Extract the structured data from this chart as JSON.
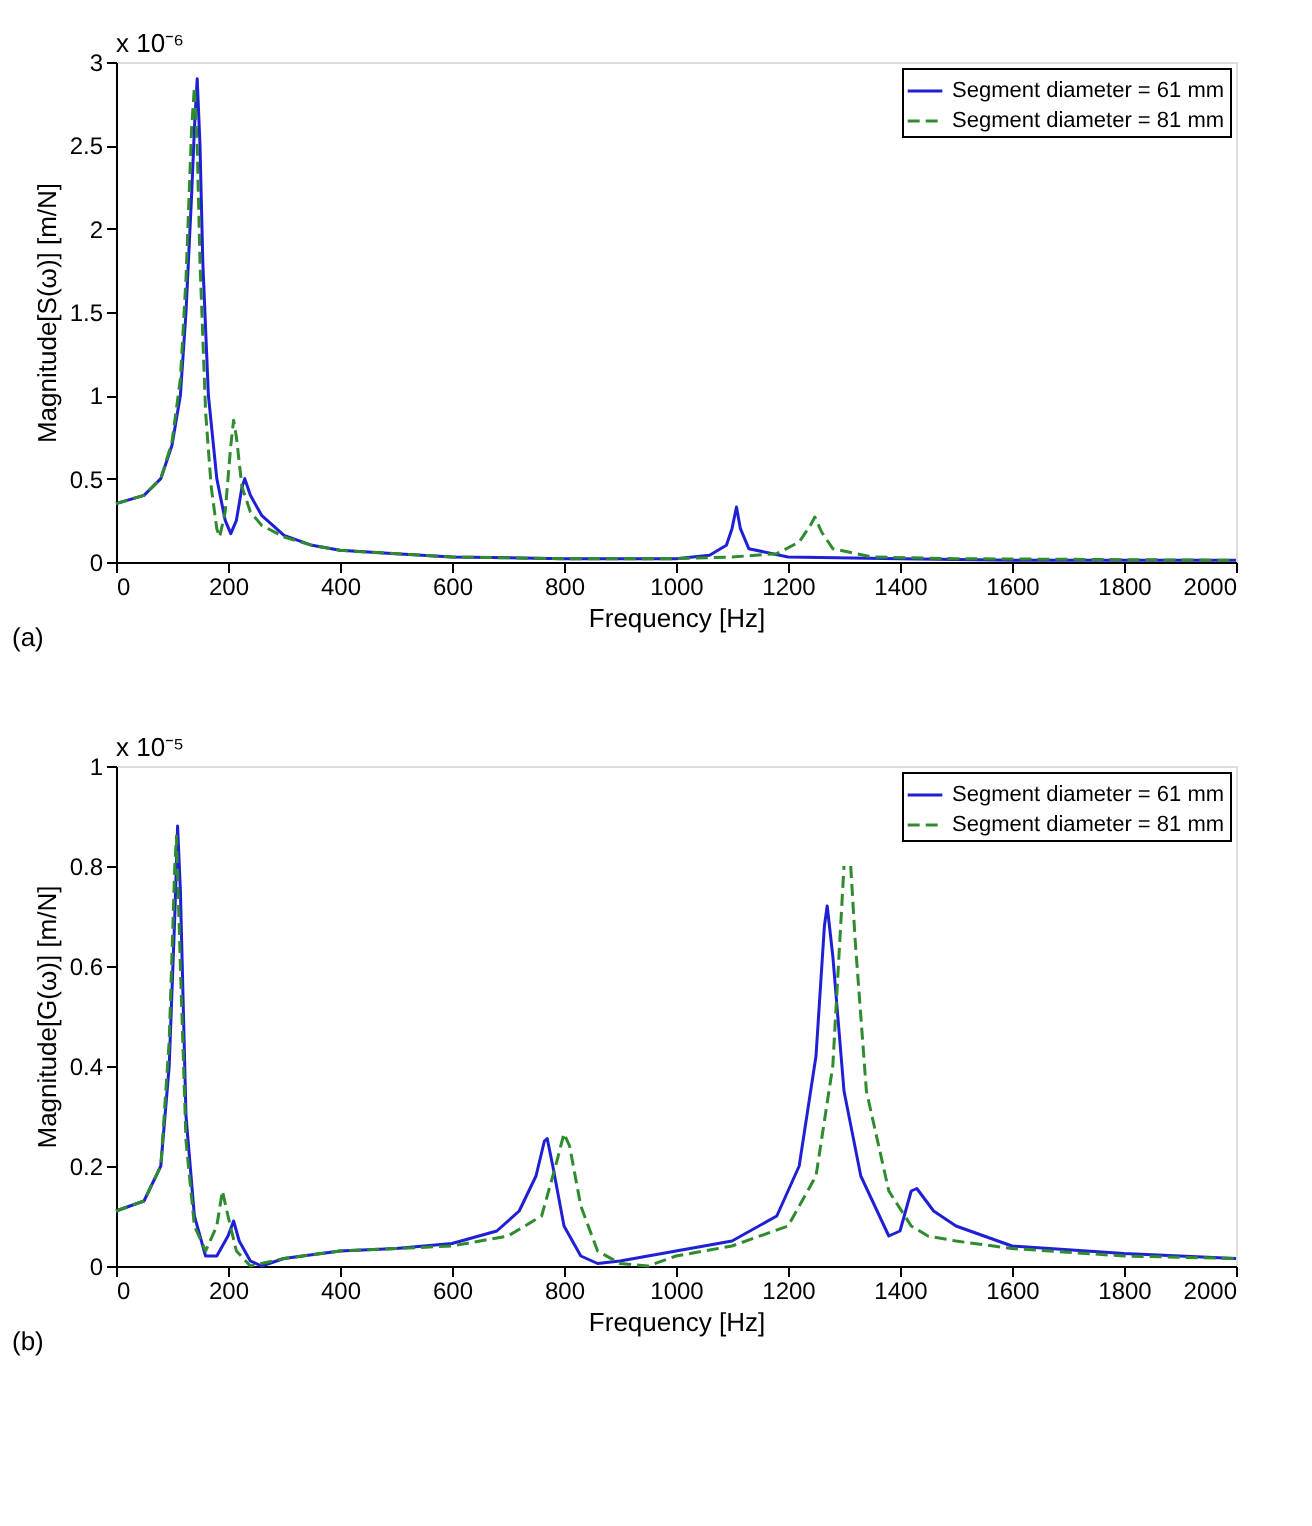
{
  "chart_data": [
    {
      "type": "line",
      "xlabel": "Frequency [Hz]",
      "ylabel": "Magnitude[S(ω)] [m/N]",
      "annotations": [
        "x 10⁻⁶",
        "(a)"
      ],
      "xlim": [
        0,
        2000
      ],
      "xticks": [
        0,
        200,
        400,
        600,
        800,
        1000,
        1200,
        1400,
        1600,
        1800,
        2000
      ],
      "ylim": [
        0,
        3
      ],
      "yticks": [
        0,
        0.5,
        1,
        1.5,
        2,
        2.5,
        3
      ],
      "grid": false,
      "legend": "top right",
      "series": [
        {
          "name": "Segment diameter = 61 mm",
          "color": "#1f1fd6",
          "line_style": "solid",
          "x": [
            0,
            50,
            80,
            100,
            115,
            125,
            135,
            140,
            145,
            150,
            155,
            165,
            180,
            195,
            205,
            215,
            225,
            230,
            240,
            260,
            300,
            350,
            400,
            500,
            600,
            800,
            1000,
            1060,
            1090,
            1100,
            1108,
            1115,
            1130,
            1200,
            1400,
            1600,
            2000
          ],
          "values": [
            0.35,
            0.4,
            0.5,
            0.7,
            1.0,
            1.5,
            2.2,
            2.6,
            2.9,
            2.5,
            1.8,
            1.0,
            0.5,
            0.25,
            0.17,
            0.25,
            0.45,
            0.5,
            0.4,
            0.28,
            0.16,
            0.1,
            0.07,
            0.05,
            0.03,
            0.02,
            0.02,
            0.04,
            0.1,
            0.2,
            0.33,
            0.2,
            0.08,
            0.03,
            0.02,
            0.01,
            0.01
          ]
        },
        {
          "name": "Segment diameter = 81 mm",
          "color": "#2e8b2e",
          "line_style": "dashed",
          "x": [
            0,
            50,
            80,
            100,
            115,
            125,
            135,
            140,
            145,
            150,
            160,
            170,
            180,
            185,
            195,
            205,
            210,
            215,
            225,
            240,
            260,
            300,
            350,
            400,
            500,
            600,
            800,
            1000,
            1100,
            1180,
            1220,
            1240,
            1248,
            1260,
            1280,
            1350,
            1500,
            2000
          ],
          "values": [
            0.35,
            0.4,
            0.5,
            0.72,
            1.1,
            1.7,
            2.6,
            2.85,
            2.5,
            1.8,
            0.9,
            0.45,
            0.2,
            0.15,
            0.3,
            0.7,
            0.85,
            0.75,
            0.45,
            0.3,
            0.22,
            0.15,
            0.1,
            0.07,
            0.05,
            0.03,
            0.02,
            0.02,
            0.03,
            0.05,
            0.12,
            0.22,
            0.27,
            0.18,
            0.08,
            0.03,
            0.02,
            0.01
          ]
        }
      ]
    },
    {
      "type": "line",
      "xlabel": "Frequency [Hz]",
      "ylabel": "Magnitude[G(ω)] [m/N]",
      "annotations": [
        "x 10⁻⁵",
        "(b)"
      ],
      "xlim": [
        0,
        2000
      ],
      "xticks": [
        0,
        200,
        400,
        600,
        800,
        1000,
        1200,
        1400,
        1600,
        1800,
        2000
      ],
      "ylim": [
        0,
        1
      ],
      "yticks": [
        0,
        0.2,
        0.4,
        0.6,
        0.8,
        1
      ],
      "grid": false,
      "legend": "top right",
      "series": [
        {
          "name": "Segment diameter = 61 mm",
          "color": "#1f1fd6",
          "line_style": "solid",
          "x": [
            0,
            50,
            80,
            95,
            105,
            110,
            115,
            125,
            140,
            160,
            180,
            200,
            210,
            220,
            240,
            260,
            300,
            400,
            500,
            600,
            680,
            720,
            750,
            765,
            770,
            780,
            800,
            830,
            860,
            900,
            1000,
            1100,
            1180,
            1220,
            1250,
            1265,
            1270,
            1280,
            1300,
            1330,
            1380,
            1400,
            1420,
            1430,
            1460,
            1500,
            1600,
            1800,
            2000
          ],
          "values": [
            0.11,
            0.13,
            0.2,
            0.4,
            0.7,
            0.88,
            0.75,
            0.3,
            0.1,
            0.02,
            0.02,
            0.06,
            0.09,
            0.05,
            0.01,
            0.0,
            0.015,
            0.03,
            0.035,
            0.045,
            0.07,
            0.11,
            0.18,
            0.25,
            0.255,
            0.2,
            0.08,
            0.02,
            0.005,
            0.01,
            0.03,
            0.05,
            0.1,
            0.2,
            0.42,
            0.68,
            0.72,
            0.62,
            0.35,
            0.18,
            0.06,
            0.07,
            0.15,
            0.155,
            0.11,
            0.08,
            0.04,
            0.025,
            0.015
          ]
        },
        {
          "name": "Segment diameter = 81 mm",
          "color": "#2e8b2e",
          "line_style": "dashed",
          "x": [
            0,
            50,
            80,
            95,
            105,
            108,
            115,
            125,
            140,
            160,
            180,
            190,
            200,
            215,
            240,
            300,
            400,
            500,
            600,
            700,
            760,
            785,
            800,
            810,
            830,
            860,
            900,
            950,
            1000,
            1100,
            1200,
            1250,
            1280,
            1295,
            1300,
            1305,
            1312,
            1320,
            1340,
            1380,
            1420,
            1450,
            1500,
            1600,
            1800,
            2000
          ],
          "values": [
            0.11,
            0.13,
            0.2,
            0.45,
            0.8,
            0.86,
            0.6,
            0.25,
            0.08,
            0.03,
            0.08,
            0.15,
            0.1,
            0.03,
            0.0,
            0.015,
            0.03,
            0.035,
            0.04,
            0.06,
            0.1,
            0.2,
            0.265,
            0.24,
            0.12,
            0.03,
            0.005,
            0.0,
            0.02,
            0.04,
            0.08,
            0.18,
            0.4,
            0.7,
            0.8,
            null,
            0.8,
            0.65,
            0.35,
            0.15,
            0.08,
            0.06,
            0.05,
            0.035,
            0.02,
            0.015
          ]
        }
      ]
    }
  ]
}
